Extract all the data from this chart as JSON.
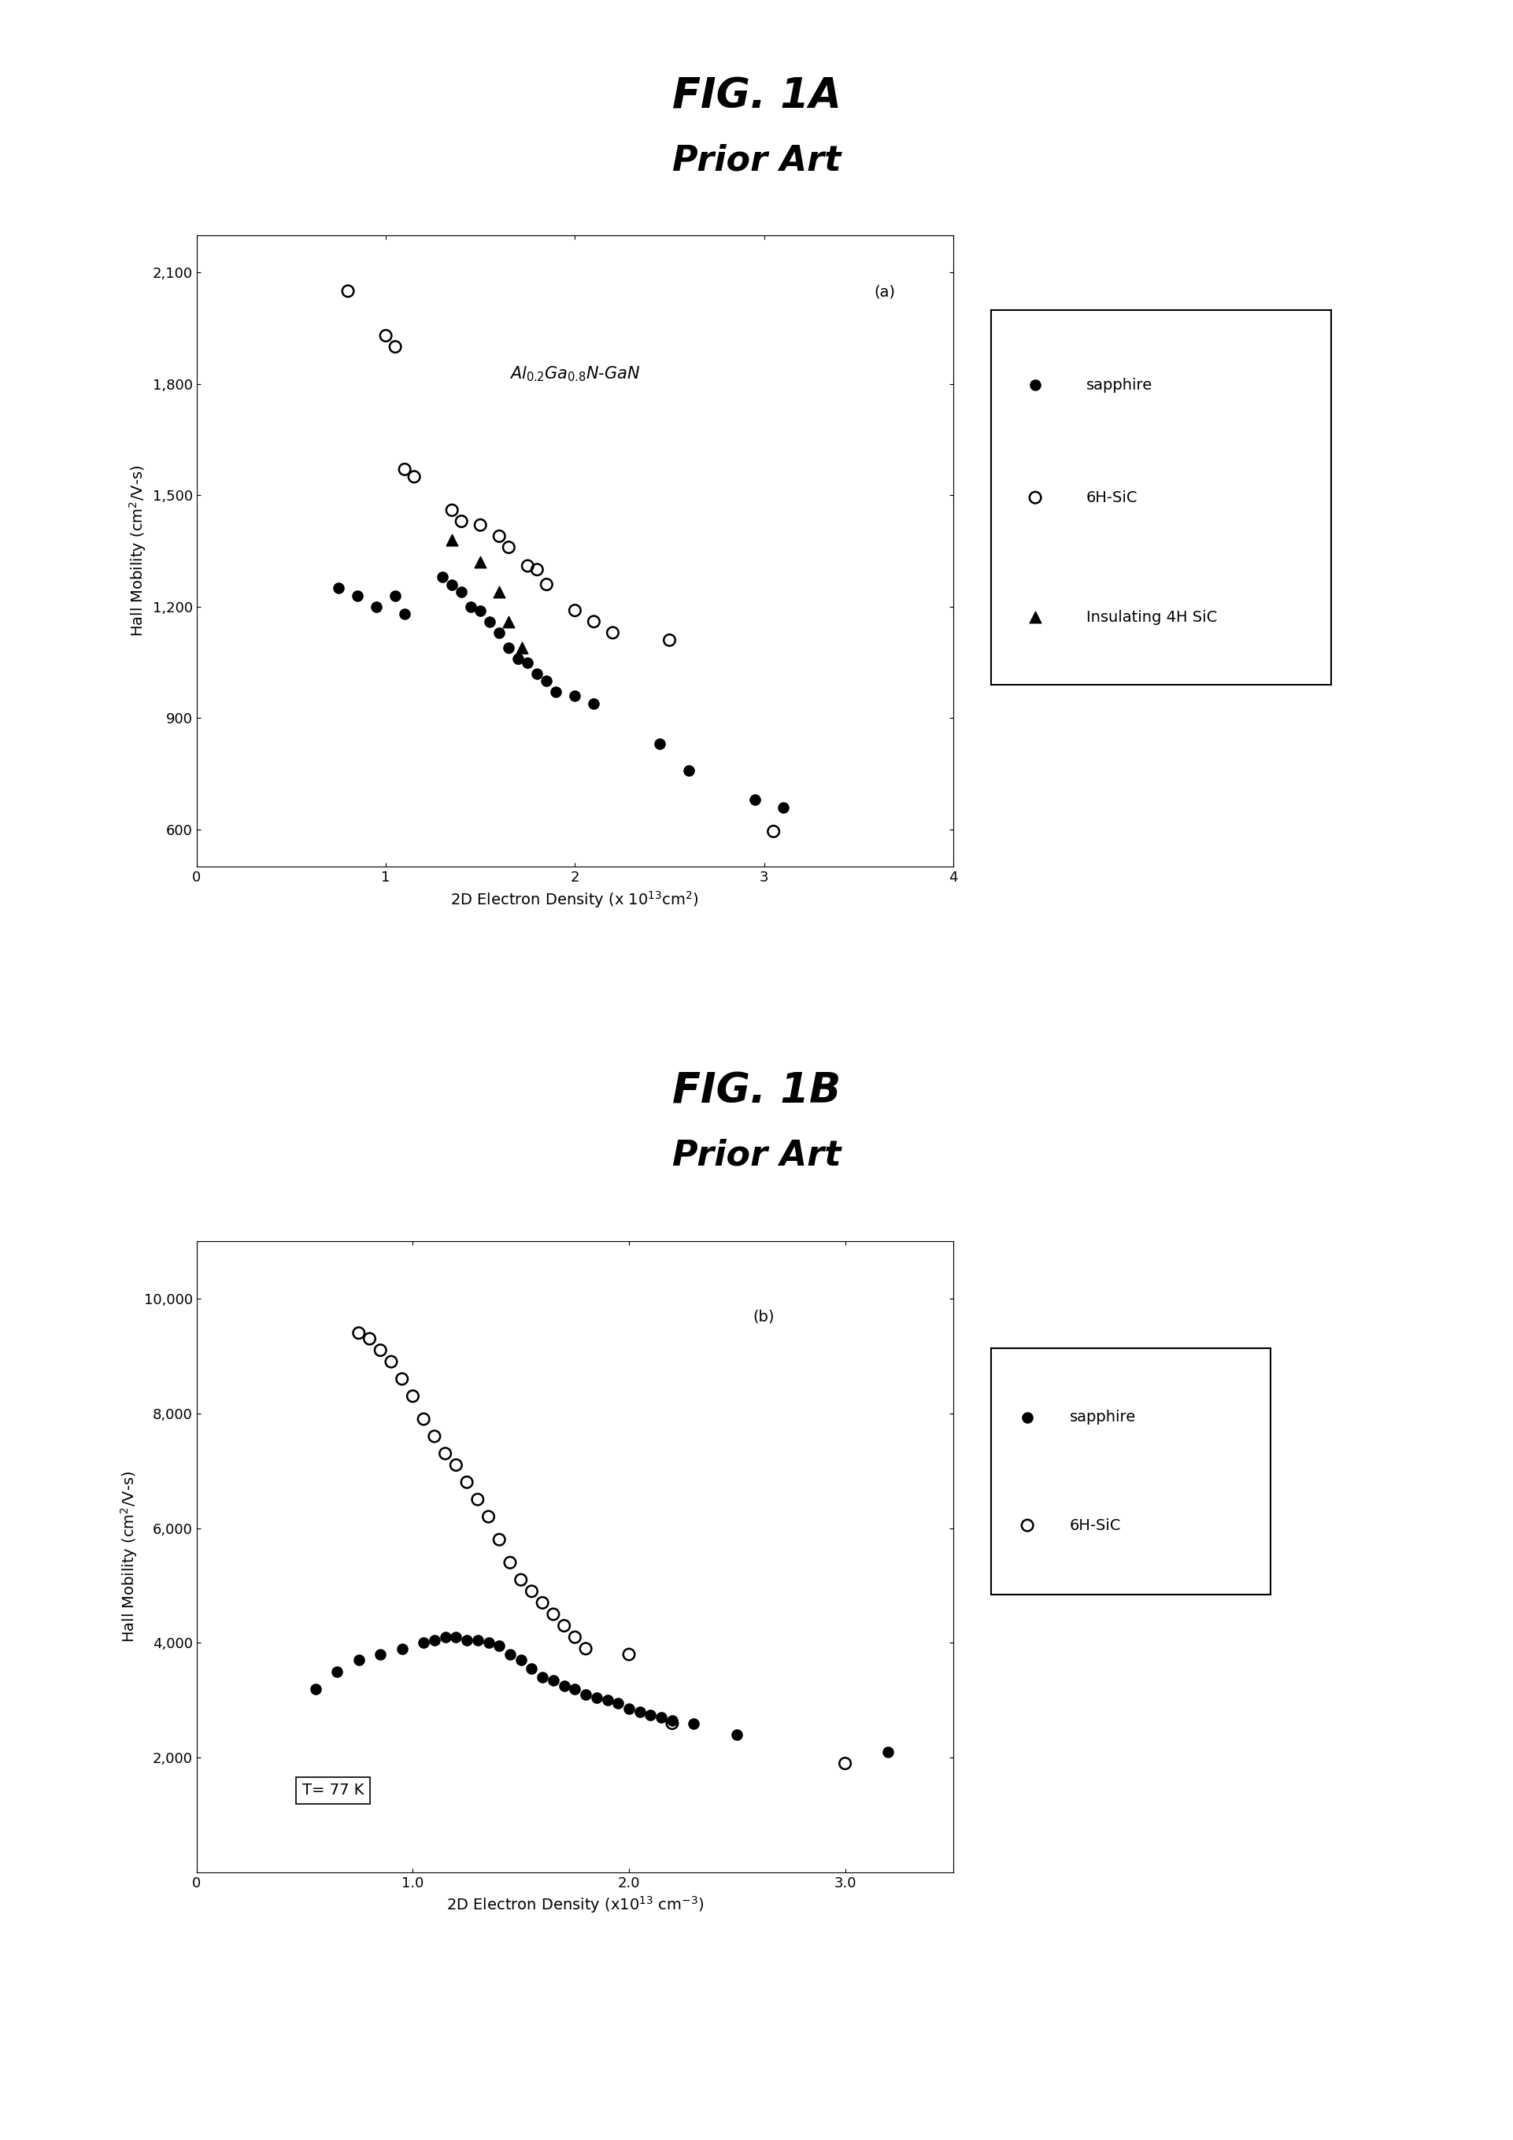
{
  "fig1a": {
    "title": "FIG. 1A",
    "subtitle": "Prior Art",
    "annotation": "(a)",
    "formula": "Al$_{0.2}$Ga$_{0.8}$N-GaN",
    "xlabel": "2D Electron Density (x 10$^{13}$cm$^{2}$)",
    "ylabel": "Hall Mobility (cm$^{2}$/V-s)",
    "xlim": [
      0,
      4
    ],
    "ylim": [
      500,
      2200
    ],
    "ytick_vals": [
      600,
      900,
      1200,
      1500,
      1800,
      2100
    ],
    "ytick_labels": [
      "600",
      "900",
      "1,200",
      "1,500",
      "1,800",
      "2,100"
    ],
    "xtick_vals": [
      0,
      1,
      2,
      3,
      4
    ],
    "xtick_labels": [
      "0",
      "1",
      "2",
      "3",
      "4"
    ],
    "sapphire": [
      [
        0.75,
        1250
      ],
      [
        0.85,
        1230
      ],
      [
        0.95,
        1200
      ],
      [
        1.05,
        1230
      ],
      [
        1.1,
        1180
      ],
      [
        1.3,
        1280
      ],
      [
        1.35,
        1260
      ],
      [
        1.4,
        1240
      ],
      [
        1.45,
        1200
      ],
      [
        1.5,
        1190
      ],
      [
        1.55,
        1160
      ],
      [
        1.6,
        1130
      ],
      [
        1.65,
        1090
      ],
      [
        1.7,
        1060
      ],
      [
        1.75,
        1050
      ],
      [
        1.8,
        1020
      ],
      [
        1.85,
        1000
      ],
      [
        1.9,
        970
      ],
      [
        2.0,
        960
      ],
      [
        2.1,
        940
      ],
      [
        2.45,
        830
      ],
      [
        2.6,
        760
      ],
      [
        2.95,
        680
      ],
      [
        3.1,
        660
      ]
    ],
    "sic6h": [
      [
        0.8,
        2050
      ],
      [
        1.0,
        1930
      ],
      [
        1.05,
        1900
      ],
      [
        1.1,
        1570
      ],
      [
        1.15,
        1550
      ],
      [
        1.35,
        1460
      ],
      [
        1.4,
        1430
      ],
      [
        1.5,
        1420
      ],
      [
        1.6,
        1390
      ],
      [
        1.65,
        1360
      ],
      [
        1.75,
        1310
      ],
      [
        1.8,
        1300
      ],
      [
        1.85,
        1260
      ],
      [
        2.0,
        1190
      ],
      [
        2.1,
        1160
      ],
      [
        2.2,
        1130
      ],
      [
        2.5,
        1110
      ],
      [
        3.05,
        595
      ]
    ],
    "sic4h": [
      [
        1.35,
        1380
      ],
      [
        1.5,
        1320
      ],
      [
        1.6,
        1240
      ],
      [
        1.65,
        1160
      ],
      [
        1.72,
        1090
      ]
    ]
  },
  "fig1b": {
    "title": "FIG. 1B",
    "subtitle": "Prior Art",
    "annotation": "(b)",
    "temp_label": "T= 77 K",
    "xlabel": "2D Electron Density (x10$^{13}$ cm$^{-3}$)",
    "ylabel": "Hall Mobility (cm$^{2}$/V-s)",
    "xlim": [
      0,
      3.5
    ],
    "ylim": [
      0,
      11000
    ],
    "ytick_vals": [
      2000,
      4000,
      6000,
      8000,
      10000
    ],
    "ytick_labels": [
      "2,000",
      "4,000",
      "6,000",
      "8,000",
      "10,000"
    ],
    "xtick_vals": [
      0,
      1.0,
      2.0,
      3.0
    ],
    "xtick_labels": [
      "0",
      "1.0",
      "2.0",
      "3.0"
    ],
    "sapphire": [
      [
        0.55,
        3200
      ],
      [
        0.65,
        3500
      ],
      [
        0.75,
        3700
      ],
      [
        0.85,
        3800
      ],
      [
        0.95,
        3900
      ],
      [
        1.05,
        4000
      ],
      [
        1.1,
        4050
      ],
      [
        1.15,
        4100
      ],
      [
        1.2,
        4100
      ],
      [
        1.25,
        4050
      ],
      [
        1.3,
        4050
      ],
      [
        1.35,
        4000
      ],
      [
        1.4,
        3950
      ],
      [
        1.45,
        3800
      ],
      [
        1.5,
        3700
      ],
      [
        1.55,
        3550
      ],
      [
        1.6,
        3400
      ],
      [
        1.65,
        3350
      ],
      [
        1.7,
        3250
      ],
      [
        1.75,
        3200
      ],
      [
        1.8,
        3100
      ],
      [
        1.85,
        3050
      ],
      [
        1.9,
        3000
      ],
      [
        1.95,
        2950
      ],
      [
        2.0,
        2850
      ],
      [
        2.05,
        2800
      ],
      [
        2.1,
        2750
      ],
      [
        2.15,
        2700
      ],
      [
        2.2,
        2650
      ],
      [
        2.3,
        2600
      ],
      [
        2.5,
        2400
      ],
      [
        3.2,
        2100
      ]
    ],
    "sic6h": [
      [
        0.75,
        9400
      ],
      [
        0.8,
        9300
      ],
      [
        0.85,
        9100
      ],
      [
        0.9,
        8900
      ],
      [
        0.95,
        8600
      ],
      [
        1.0,
        8300
      ],
      [
        1.05,
        7900
      ],
      [
        1.1,
        7600
      ],
      [
        1.15,
        7300
      ],
      [
        1.2,
        7100
      ],
      [
        1.25,
        6800
      ],
      [
        1.3,
        6500
      ],
      [
        1.35,
        6200
      ],
      [
        1.4,
        5800
      ],
      [
        1.45,
        5400
      ],
      [
        1.5,
        5100
      ],
      [
        1.55,
        4900
      ],
      [
        1.6,
        4700
      ],
      [
        1.65,
        4500
      ],
      [
        1.7,
        4300
      ],
      [
        1.75,
        4100
      ],
      [
        1.8,
        3900
      ],
      [
        2.0,
        3800
      ],
      [
        2.2,
        2600
      ],
      [
        3.0,
        1900
      ]
    ]
  },
  "title_fontsize": 38,
  "subtitle_fontsize": 32,
  "tick_fontsize": 13,
  "label_fontsize": 14,
  "legend_fontsize": 14,
  "marker_size_filled": 90,
  "marker_size_open": 110
}
